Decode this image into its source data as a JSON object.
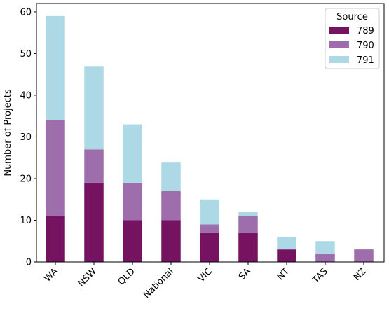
{
  "chart_data": {
    "type": "bar",
    "stacked": true,
    "title": "",
    "xlabel": "",
    "ylabel": "Number of Projects",
    "ylim": [
      0,
      62
    ],
    "yticks": [
      0,
      10,
      20,
      30,
      40,
      50,
      60
    ],
    "categories": [
      "WA",
      "NSW",
      "QLD",
      "National",
      "VIC",
      "SA",
      "NT",
      "TAS",
      "NZ"
    ],
    "legend": {
      "title": "Source",
      "position": "top-right"
    },
    "grid": false,
    "series": [
      {
        "name": "789",
        "color": "#751360",
        "values": [
          11,
          19,
          10,
          10,
          7,
          7,
          3,
          0,
          0
        ]
      },
      {
        "name": "790",
        "color": "#9d6eab",
        "values": [
          23,
          8,
          9,
          7,
          2,
          4,
          0,
          2,
          3
        ]
      },
      {
        "name": "791",
        "color": "#add8e6",
        "values": [
          25,
          20,
          14,
          7,
          6,
          1,
          3,
          3,
          0
        ]
      }
    ]
  }
}
